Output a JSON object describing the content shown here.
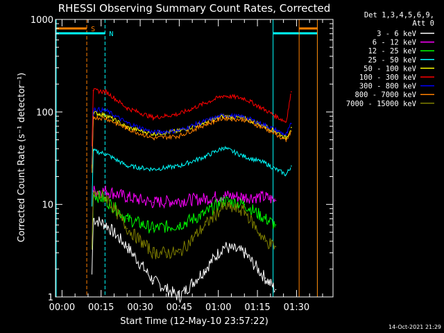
{
  "chart_data": {
    "type": "line",
    "title": "RHESSI Observing Summary Count Rates, Corrected",
    "xlabel": "Start Time (12-May-10 23:57:22)",
    "ylabel": "Corrected Count Rate (s⁻¹ detector⁻¹)",
    "y_scale": "log",
    "ylim": [
      1,
      1000
    ],
    "y_ticks": [
      "1",
      "10",
      "100",
      "1000"
    ],
    "x_unit": "minutes since 00:00",
    "xlim": [
      -2.5,
      104
    ],
    "x_ticks": [
      {
        "value": 0,
        "label": "00:00"
      },
      {
        "value": 15,
        "label": "00:15"
      },
      {
        "value": 30,
        "label": "00:30"
      },
      {
        "value": 45,
        "label": "00:45"
      },
      {
        "value": 60,
        "label": "01:00"
      },
      {
        "value": 75,
        "label": "01:15"
      },
      {
        "value": 90,
        "label": "01:30"
      }
    ],
    "legend_header": [
      "Det 1,3,4,5,6,9,",
      "Att 0"
    ],
    "markers": [
      {
        "label": "S",
        "color": "#ff8000",
        "start": -2.5,
        "end": 9.5,
        "style": "dashed"
      },
      {
        "label": "N",
        "color": "#00ffff",
        "start": -2.5,
        "end": 16.5,
        "style": "dashed"
      },
      {
        "label": "",
        "color": "#00ffff",
        "start": 81,
        "end": 98,
        "style": "solid"
      },
      {
        "label": "",
        "color": "#ff8000",
        "start": 91,
        "end": 98,
        "style": "solid"
      }
    ],
    "x": [
      12,
      17,
      25,
      35,
      45,
      55,
      62,
      70,
      78,
      82,
      86,
      88
    ],
    "series": [
      {
        "name": "3 - 6 keV",
        "color": "#ffffff",
        "values": [
          7,
          6,
          3.5,
          1.5,
          1.0,
          2,
          3.5,
          3,
          1.6,
          1.2,
          null,
          null
        ]
      },
      {
        "name": "6 - 12 keV",
        "color": "#ff00ff",
        "values": [
          14,
          14,
          12,
          10.5,
          11,
          11.5,
          12.5,
          12,
          12,
          11,
          null,
          null
        ]
      },
      {
        "name": "12 - 25 keV",
        "color": "#00ff00",
        "values": [
          13,
          11,
          7,
          5.5,
          6,
          8,
          11,
          10,
          7,
          6,
          null,
          null
        ]
      },
      {
        "name": "25 - 50 keV",
        "color": "#00ffff",
        "values": [
          38,
          35,
          26,
          24,
          26,
          33,
          41,
          33,
          28,
          24,
          21,
          26
        ]
      },
      {
        "name": "50 - 100 keV",
        "color": "#ffff00",
        "values": [
          98,
          92,
          68,
          58,
          62,
          77,
          90,
          85,
          70,
          62,
          52,
          68
        ]
      },
      {
        "name": "100 - 300 keV",
        "color": "#ff0000",
        "values": [
          170,
          165,
          110,
          87,
          95,
          125,
          150,
          140,
          105,
          90,
          78,
          165
        ]
      },
      {
        "name": "300 - 800 keV",
        "color": "#0000ff",
        "values": [
          108,
          103,
          76,
          60,
          63,
          80,
          92,
          88,
          72,
          64,
          56,
          75
        ]
      },
      {
        "name": "800 - 7000 keV",
        "color": "#ff8000",
        "values": [
          88,
          85,
          66,
          52,
          55,
          73,
          86,
          82,
          66,
          58,
          48,
          62
        ]
      },
      {
        "name": "7000 - 15000 keV",
        "color": "#808000",
        "values": [
          13,
          12,
          5.5,
          3,
          3,
          6,
          9.5,
          8.5,
          4,
          3.5,
          null,
          null
        ]
      }
    ],
    "grid": false,
    "legend_position": "right",
    "footer": "14-Oct-2021 21:29"
  }
}
